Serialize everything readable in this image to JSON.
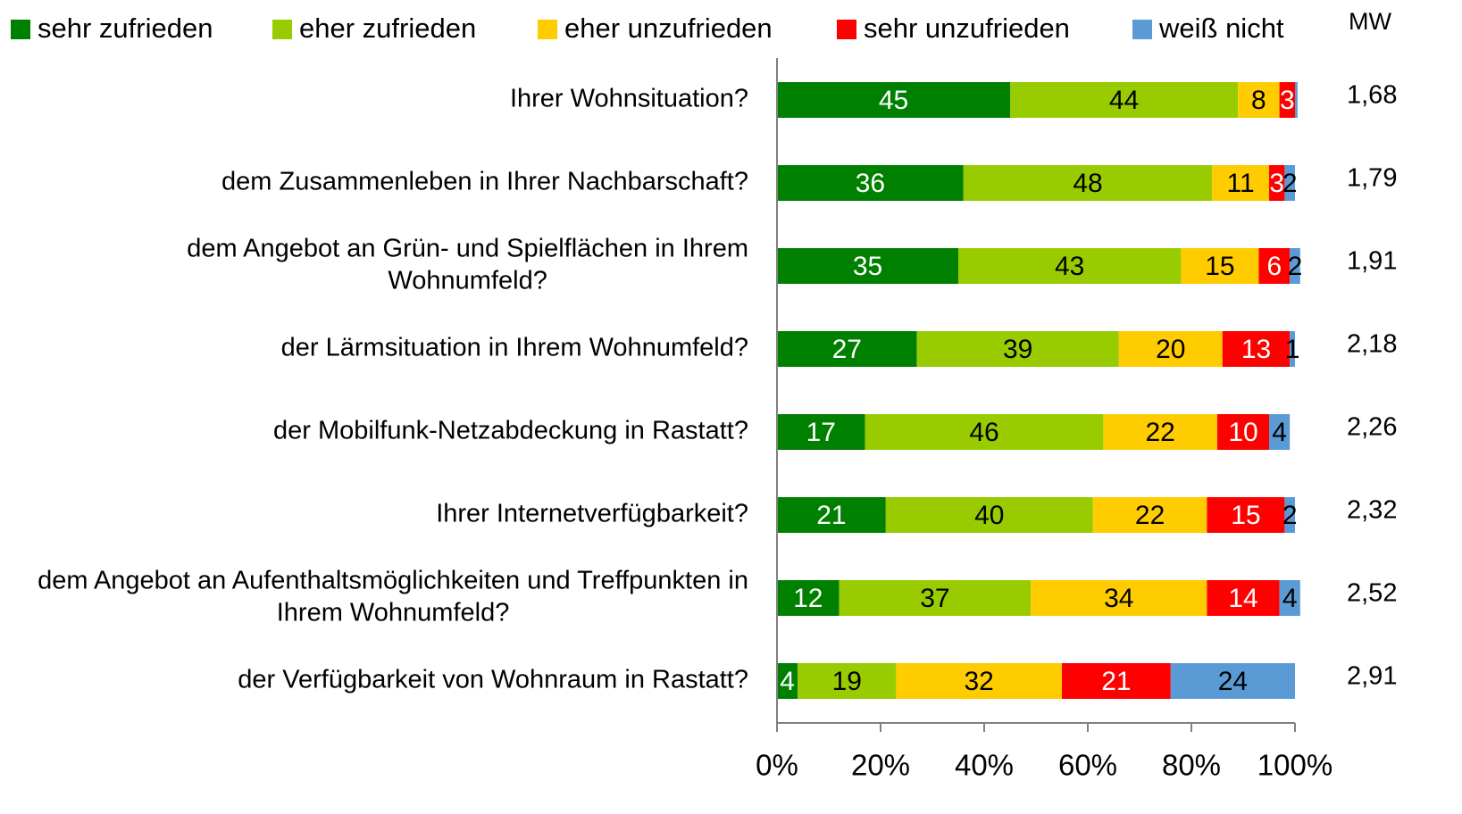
{
  "chart_data": {
    "type": "stacked_barh",
    "categories": [
      [
        "Ihrer Wohnsituation?"
      ],
      [
        "dem Zusammenleben in Ihrer Nachbarschaft?"
      ],
      [
        "dem Angebot an Grün- und Spielflächen in Ihrem",
        "Wohnumfeld?"
      ],
      [
        "der Lärmsituation in Ihrem Wohnumfeld?"
      ],
      [
        "der Mobilfunk-Netzabdeckung in Rastatt?"
      ],
      [
        "Ihrer Internetverfügbarkeit?"
      ],
      [
        "dem Angebot an Aufenthaltsmöglichkeiten und Treffpunkten in",
        "Ihrem Wohnumfeld?"
      ],
      [
        "der Verfügbarkeit von Wohnraum in Rastatt?"
      ]
    ],
    "series": [
      {
        "name": "sehr zufrieden",
        "color": "#008000",
        "values": [
          45,
          36,
          35,
          27,
          17,
          21,
          12,
          4
        ]
      },
      {
        "name": "eher zufrieden",
        "color": "#99cc00",
        "values": [
          44,
          48,
          43,
          39,
          46,
          40,
          37,
          19
        ]
      },
      {
        "name": "eher unzufrieden",
        "color": "#ffcc00",
        "values": [
          8,
          11,
          15,
          20,
          22,
          22,
          34,
          32
        ]
      },
      {
        "name": "sehr unzufrieden",
        "color": "#ff0000",
        "values": [
          3,
          3,
          6,
          13,
          10,
          15,
          14,
          21
        ]
      },
      {
        "name": "weiß nicht",
        "color": "#5b9bd5",
        "values": [
          0.5,
          2,
          2,
          1,
          4,
          2,
          4,
          24
        ]
      }
    ],
    "mw": {
      "label": "MW",
      "values": [
        "1,68",
        "1,79",
        "1,91",
        "2,18",
        "2,26",
        "2,32",
        "2,52",
        "2,91"
      ]
    },
    "xlim": [
      0,
      100
    ],
    "xticks": [
      {
        "value": 0,
        "label": "0%"
      },
      {
        "value": 20,
        "label": "20%"
      },
      {
        "value": 40,
        "label": "40%"
      },
      {
        "value": 60,
        "label": "60%"
      },
      {
        "value": 80,
        "label": "80%"
      },
      {
        "value": 100,
        "label": "100%"
      }
    ],
    "legend": "top"
  }
}
